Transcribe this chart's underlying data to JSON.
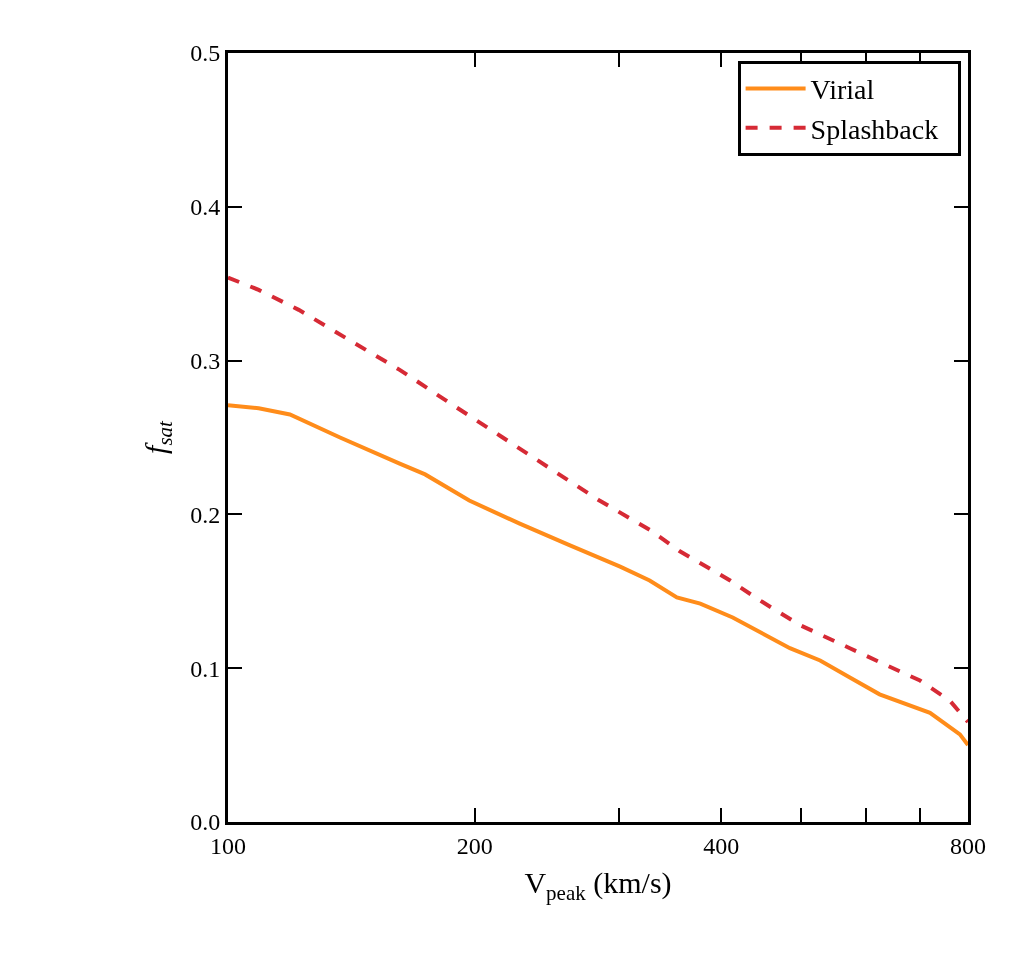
{
  "chart_data": {
    "type": "line",
    "xlabel": "V$_{peak}$ (km/s)",
    "ylabel": "f$_{sat}$",
    "log": "x",
    "xlim": [
      100,
      800
    ],
    "xticks": [
      100,
      200,
      {
        "value": 300,
        "label": null
      },
      400,
      {
        "value": 500,
        "label": null
      },
      {
        "value": 600,
        "label": null
      },
      {
        "value": 700,
        "label": null
      },
      800
    ],
    "ylim": [
      0,
      0.5
    ],
    "yticks": [
      {
        "value": 0,
        "label": "0.0"
      },
      0.1,
      0.2,
      0.3,
      0.4,
      0.5
    ],
    "legend": "top right",
    "marker": "none",
    "series": [
      {
        "name": "Virial",
        "color": "#ff8c1a",
        "line_style": "solid",
        "x": [
          100,
          109,
          119,
          137,
          162,
          174,
          197,
          227,
          261,
          301,
          327,
          353,
          377,
          413,
          485,
          528,
          574,
          624,
          719,
          782,
          800
        ],
        "values": [
          0.271,
          0.269,
          0.265,
          0.25,
          0.233,
          0.226,
          0.209,
          0.194,
          0.18,
          0.166,
          0.157,
          0.146,
          0.142,
          0.133,
          0.113,
          0.105,
          0.094,
          0.083,
          0.071,
          0.057,
          0.05
        ]
      },
      {
        "name": "Splashback",
        "color": "#d62a35",
        "line_style": "dashed",
        "x": [
          100,
          109,
          122,
          141,
          162,
          187,
          215,
          247,
          284,
          327,
          356,
          410,
          446,
          499,
          574,
          624,
          699,
          760,
          800
        ],
        "values": [
          0.354,
          0.346,
          0.333,
          0.313,
          0.294,
          0.272,
          0.251,
          0.23,
          0.209,
          0.19,
          0.176,
          0.157,
          0.144,
          0.128,
          0.113,
          0.104,
          0.092,
          0.079,
          0.065
        ]
      }
    ]
  }
}
